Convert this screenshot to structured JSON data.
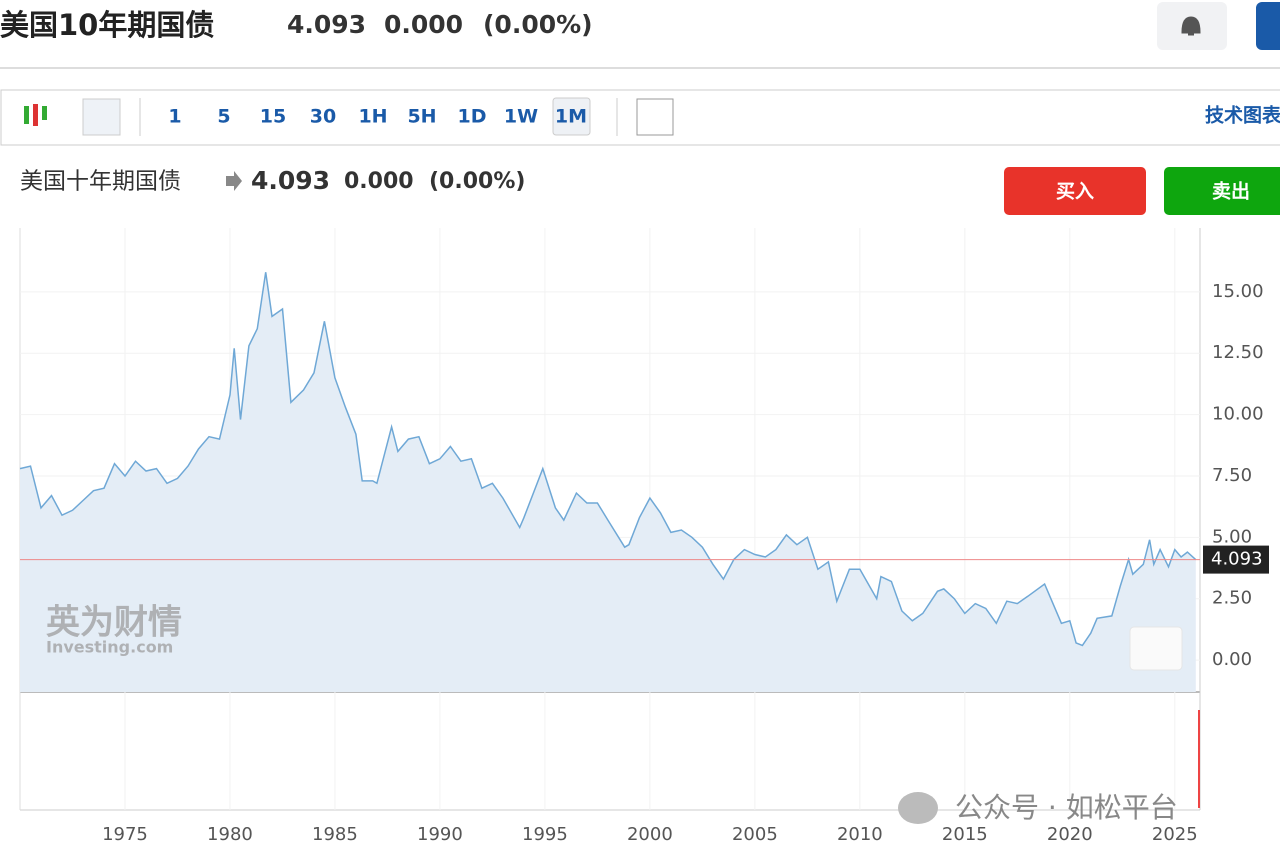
{
  "header": {
    "title": "美国10年期国债",
    "price": "4.093",
    "change": "0.000",
    "change_pct": "(0.00%)"
  },
  "toolbar": {
    "intervals": [
      "1",
      "5",
      "15",
      "30",
      "1H",
      "5H",
      "1D",
      "1W",
      "1M"
    ],
    "link": "技术图表"
  },
  "chart_header": {
    "name": "美国十年期国债",
    "price": "4.093",
    "change": "0.000",
    "change_pct": "(0.00%)"
  },
  "buttons": {
    "buy": "买入",
    "sell": "卖出"
  },
  "watermark": {
    "brand": "英为财情",
    "site": "Investing.com"
  },
  "overlay": "公众号 · 如松平台",
  "chart_data": {
    "type": "line",
    "color": "#6fa8d6",
    "fill": "#e4edf6",
    "x": [
      1970.0,
      1970.5,
      1971.0,
      1971.5,
      1972.0,
      1972.5,
      1973.0,
      1973.5,
      1974.0,
      1974.5,
      1975.0,
      1975.5,
      1976.0,
      1976.5,
      1977.0,
      1977.5,
      1978.0,
      1978.5,
      1979.0,
      1979.5,
      1980.0,
      1980.2,
      1980.5,
      1980.9,
      1981.3,
      1981.7,
      1981.8,
      1982.0,
      1982.5,
      1982.9,
      1983.5,
      1984.0,
      1984.5,
      1985.0,
      1985.5,
      1986.0,
      1986.3,
      1986.8,
      1987.0,
      1987.7,
      1988.0,
      1988.5,
      1989.0,
      1989.5,
      1990.0,
      1990.5,
      1991.0,
      1991.5,
      1992.0,
      1992.5,
      1993.0,
      1993.8,
      1994.0,
      1994.9,
      1995.5,
      1995.9,
      1996.5,
      1997.0,
      1997.5,
      1998.0,
      1998.8,
      1999.0,
      1999.5,
      2000.0,
      2000.5,
      2001.0,
      2001.5,
      2002.0,
      2002.5,
      2003.0,
      2003.5,
      2004.0,
      2004.5,
      2005.0,
      2005.5,
      2006.0,
      2006.5,
      2007.0,
      2007.5,
      2008.0,
      2008.5,
      2008.9,
      2009.5,
      2010.0,
      2010.8,
      2011.0,
      2011.5,
      2012.0,
      2012.5,
      2013.0,
      2013.7,
      2014.0,
      2014.5,
      2015.0,
      2015.5,
      2016.0,
      2016.5,
      2017.0,
      2017.5,
      2018.0,
      2018.8,
      2019.0,
      2019.6,
      2020.0,
      2020.3,
      2020.6,
      2021.0,
      2021.3,
      2022.0,
      2022.4,
      2022.8,
      2023.0,
      2023.5,
      2023.8,
      2024.0,
      2024.3,
      2024.7,
      2025.0,
      2025.3,
      2025.6,
      2026.0
    ],
    "values": [
      7.8,
      7.9,
      6.2,
      6.7,
      5.9,
      6.1,
      6.5,
      6.9,
      7.0,
      8.0,
      7.5,
      8.1,
      7.7,
      7.8,
      7.2,
      7.4,
      7.9,
      8.6,
      9.1,
      9.0,
      10.8,
      12.7,
      9.8,
      12.8,
      13.5,
      15.8,
      15.2,
      14.0,
      14.3,
      10.5,
      11.0,
      11.7,
      13.8,
      11.5,
      10.3,
      9.2,
      7.3,
      7.3,
      7.2,
      9.5,
      8.5,
      9.0,
      9.1,
      8.0,
      8.2,
      8.7,
      8.1,
      8.2,
      7.0,
      7.2,
      6.6,
      5.4,
      5.8,
      7.8,
      6.2,
      5.7,
      6.8,
      6.4,
      6.4,
      5.7,
      4.6,
      4.7,
      5.8,
      6.6,
      6.0,
      5.2,
      5.3,
      5.0,
      4.6,
      3.9,
      3.3,
      4.1,
      4.5,
      4.3,
      4.2,
      4.5,
      5.1,
      4.7,
      5.0,
      3.7,
      4.0,
      2.4,
      3.7,
      3.7,
      2.5,
      3.4,
      3.2,
      2.0,
      1.6,
      1.9,
      2.8,
      2.9,
      2.5,
      1.9,
      2.3,
      2.1,
      1.5,
      2.4,
      2.3,
      2.6,
      3.1,
      2.7,
      1.5,
      1.6,
      0.7,
      0.6,
      1.1,
      1.7,
      1.8,
      3.0,
      4.1,
      3.5,
      3.9,
      4.9,
      3.9,
      4.5,
      3.8,
      4.5,
      4.2,
      4.4,
      4.09
    ],
    "current_value": 4.093,
    "xlim": [
      1970,
      2026.2
    ],
    "xticks": [
      1975,
      1980,
      1985,
      1990,
      1995,
      2000,
      2005,
      2010,
      2015,
      2020,
      2025
    ],
    "ylim": [
      -1.3,
      17.6
    ],
    "yticks": [
      {
        "value": 0,
        "label": "0.00"
      },
      {
        "value": 2.5,
        "label": "2.50"
      },
      {
        "value": 5,
        "label": "5.00"
      },
      {
        "value": 7.5,
        "label": "7.50"
      },
      {
        "value": 10,
        "label": "10.00"
      },
      {
        "value": 12.5,
        "label": "12.50"
      },
      {
        "value": 15,
        "label": "15.00"
      }
    ],
    "grid": true
  }
}
